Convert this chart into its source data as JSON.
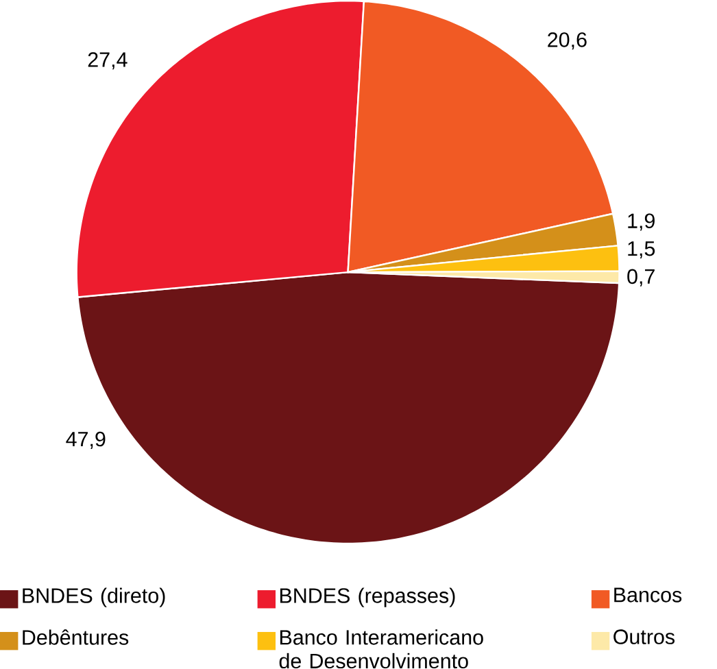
{
  "chart_data": {
    "type": "pie",
    "categories": [
      "BNDES (direto)",
      "BNDES (repasses)",
      "Bancos",
      "Debêntures",
      "Banco Interamericano de Desenvolvimento",
      "Outros"
    ],
    "values": [
      47.9,
      27.4,
      20.6,
      1.9,
      1.5,
      0.7
    ],
    "value_labels": [
      "47,9",
      "27,4",
      "20,6",
      "1,9",
      "1,5",
      "0,7"
    ],
    "colors": [
      "#6b1416",
      "#ed1c2e",
      "#f15a24",
      "#d4901a",
      "#fdc010",
      "#fde9a8"
    ],
    "legend": "bottom"
  }
}
